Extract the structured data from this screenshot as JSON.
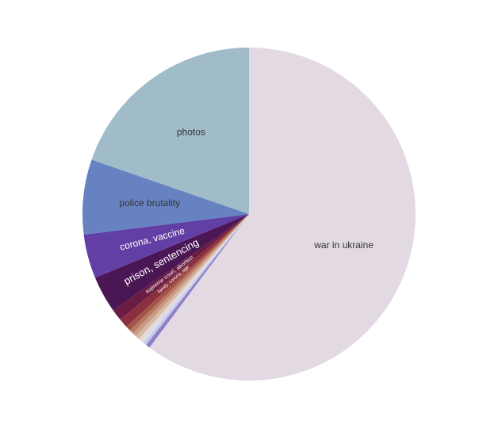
{
  "chart_data": {
    "type": "pie",
    "title": "",
    "start_angle_deg": 90,
    "direction": "clockwise",
    "slices": [
      {
        "label": "war in ukraine",
        "value": 60.5,
        "color": "#e2d9e3",
        "label_color": "#333333",
        "label_size": 12,
        "show_label": true
      },
      {
        "label": "",
        "value": 0.4,
        "color": "#8c7fc6",
        "label_color": "#ffffff",
        "label_size": 4,
        "show_label": false
      },
      {
        "label": "",
        "value": 0.3,
        "color": "#c5c7e7",
        "label_color": "#333333",
        "label_size": 4,
        "show_label": false
      },
      {
        "label": "",
        "value": 0.3,
        "color": "#dcdcee",
        "label_color": "#333333",
        "label_size": 4,
        "show_label": false
      },
      {
        "label": "",
        "value": 0.3,
        "color": "#e4d9d6",
        "label_color": "#333333",
        "label_size": 4,
        "show_label": false
      },
      {
        "label": "",
        "value": 0.4,
        "color": "#d7b9a6",
        "label_color": "#ffffff",
        "label_size": 4,
        "show_label": false
      },
      {
        "label": "",
        "value": 0.4,
        "color": "#c99a84",
        "label_color": "#ffffff",
        "label_size": 4,
        "show_label": false
      },
      {
        "label": "",
        "value": 0.4,
        "color": "#b97a62",
        "label_color": "#ffffff",
        "label_size": 4,
        "show_label": false
      },
      {
        "label": "",
        "value": 0.5,
        "color": "#a45346",
        "label_color": "#ffffff",
        "label_size": 5,
        "show_label": false
      },
      {
        "label": "family, corona, age",
        "value": 0.9,
        "color": "#8a2f3e",
        "label_color": "#ffffff",
        "label_size": 6,
        "show_label": true
      },
      {
        "label": "supreme court, abortion",
        "value": 1.1,
        "color": "#6a1c43",
        "label_color": "#ffffff",
        "label_size": 7,
        "show_label": true
      },
      {
        "label": "prison, sentencing",
        "value": 3.6,
        "color": "#4a1654",
        "label_color": "#ffffff",
        "label_size": 13,
        "show_label": true
      },
      {
        "label": "corona, vaccine",
        "value": 4.3,
        "color": "#623fa4",
        "label_color": "#ffffff",
        "label_size": 12,
        "show_label": true
      },
      {
        "label": "police brutality",
        "value": 7.3,
        "color": "#6782c1",
        "label_color": "#333333",
        "label_size": 12,
        "show_label": true
      },
      {
        "label": "photos",
        "value": 19.8,
        "color": "#a0bcc8",
        "label_color": "#333333",
        "label_size": 12,
        "show_label": true
      }
    ]
  }
}
